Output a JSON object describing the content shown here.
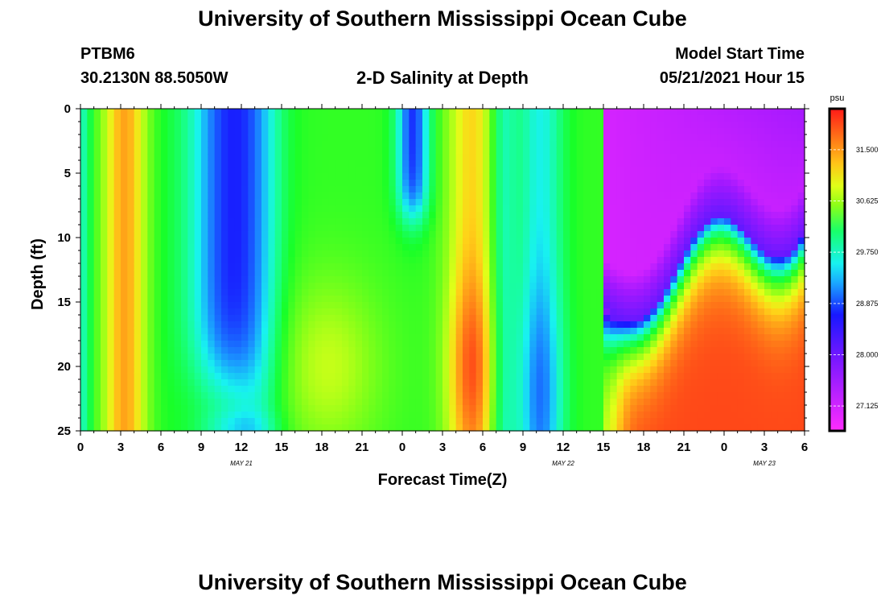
{
  "header": {
    "title": "University of Southern Mississippi Ocean Cube",
    "station": "PTBM6",
    "coords": "30.2130N  88.5050W",
    "model_start_label": "Model Start Time",
    "model_start_value": "05/21/2021 Hour 15",
    "footer_title": "University of Southern Mississippi Ocean Cube"
  },
  "chart_data": {
    "type": "heatmap",
    "title": "2-D Salinity at Depth",
    "xlabel": "Forecast Time(Z)",
    "ylabel": "Depth (ft)",
    "x_range_hours": [
      0,
      54
    ],
    "y_range_ft": [
      0,
      25
    ],
    "x_ticks": [
      "0",
      "3",
      "6",
      "9",
      "12",
      "15",
      "18",
      "21",
      "0",
      "3",
      "6",
      "9",
      "12",
      "15",
      "18",
      "21",
      "0",
      "3",
      "6"
    ],
    "y_ticks": [
      "0",
      "5",
      "10",
      "15",
      "20",
      "25"
    ],
    "date_labels": [
      {
        "label": "MAY 21",
        "hour": 12
      },
      {
        "label": "MAY 22",
        "hour": 36
      },
      {
        "label": "MAY 23",
        "hour": 51
      }
    ],
    "colorbar": {
      "unit": "psu",
      "ticks": [
        "31.500",
        "30.625",
        "29.750",
        "28.875",
        "28.000",
        "27.125"
      ],
      "tick_values": [
        31.5,
        30.625,
        29.75,
        28.875,
        28.0,
        27.125
      ],
      "range": [
        26.7,
        32.2
      ]
    },
    "grid": false
  }
}
